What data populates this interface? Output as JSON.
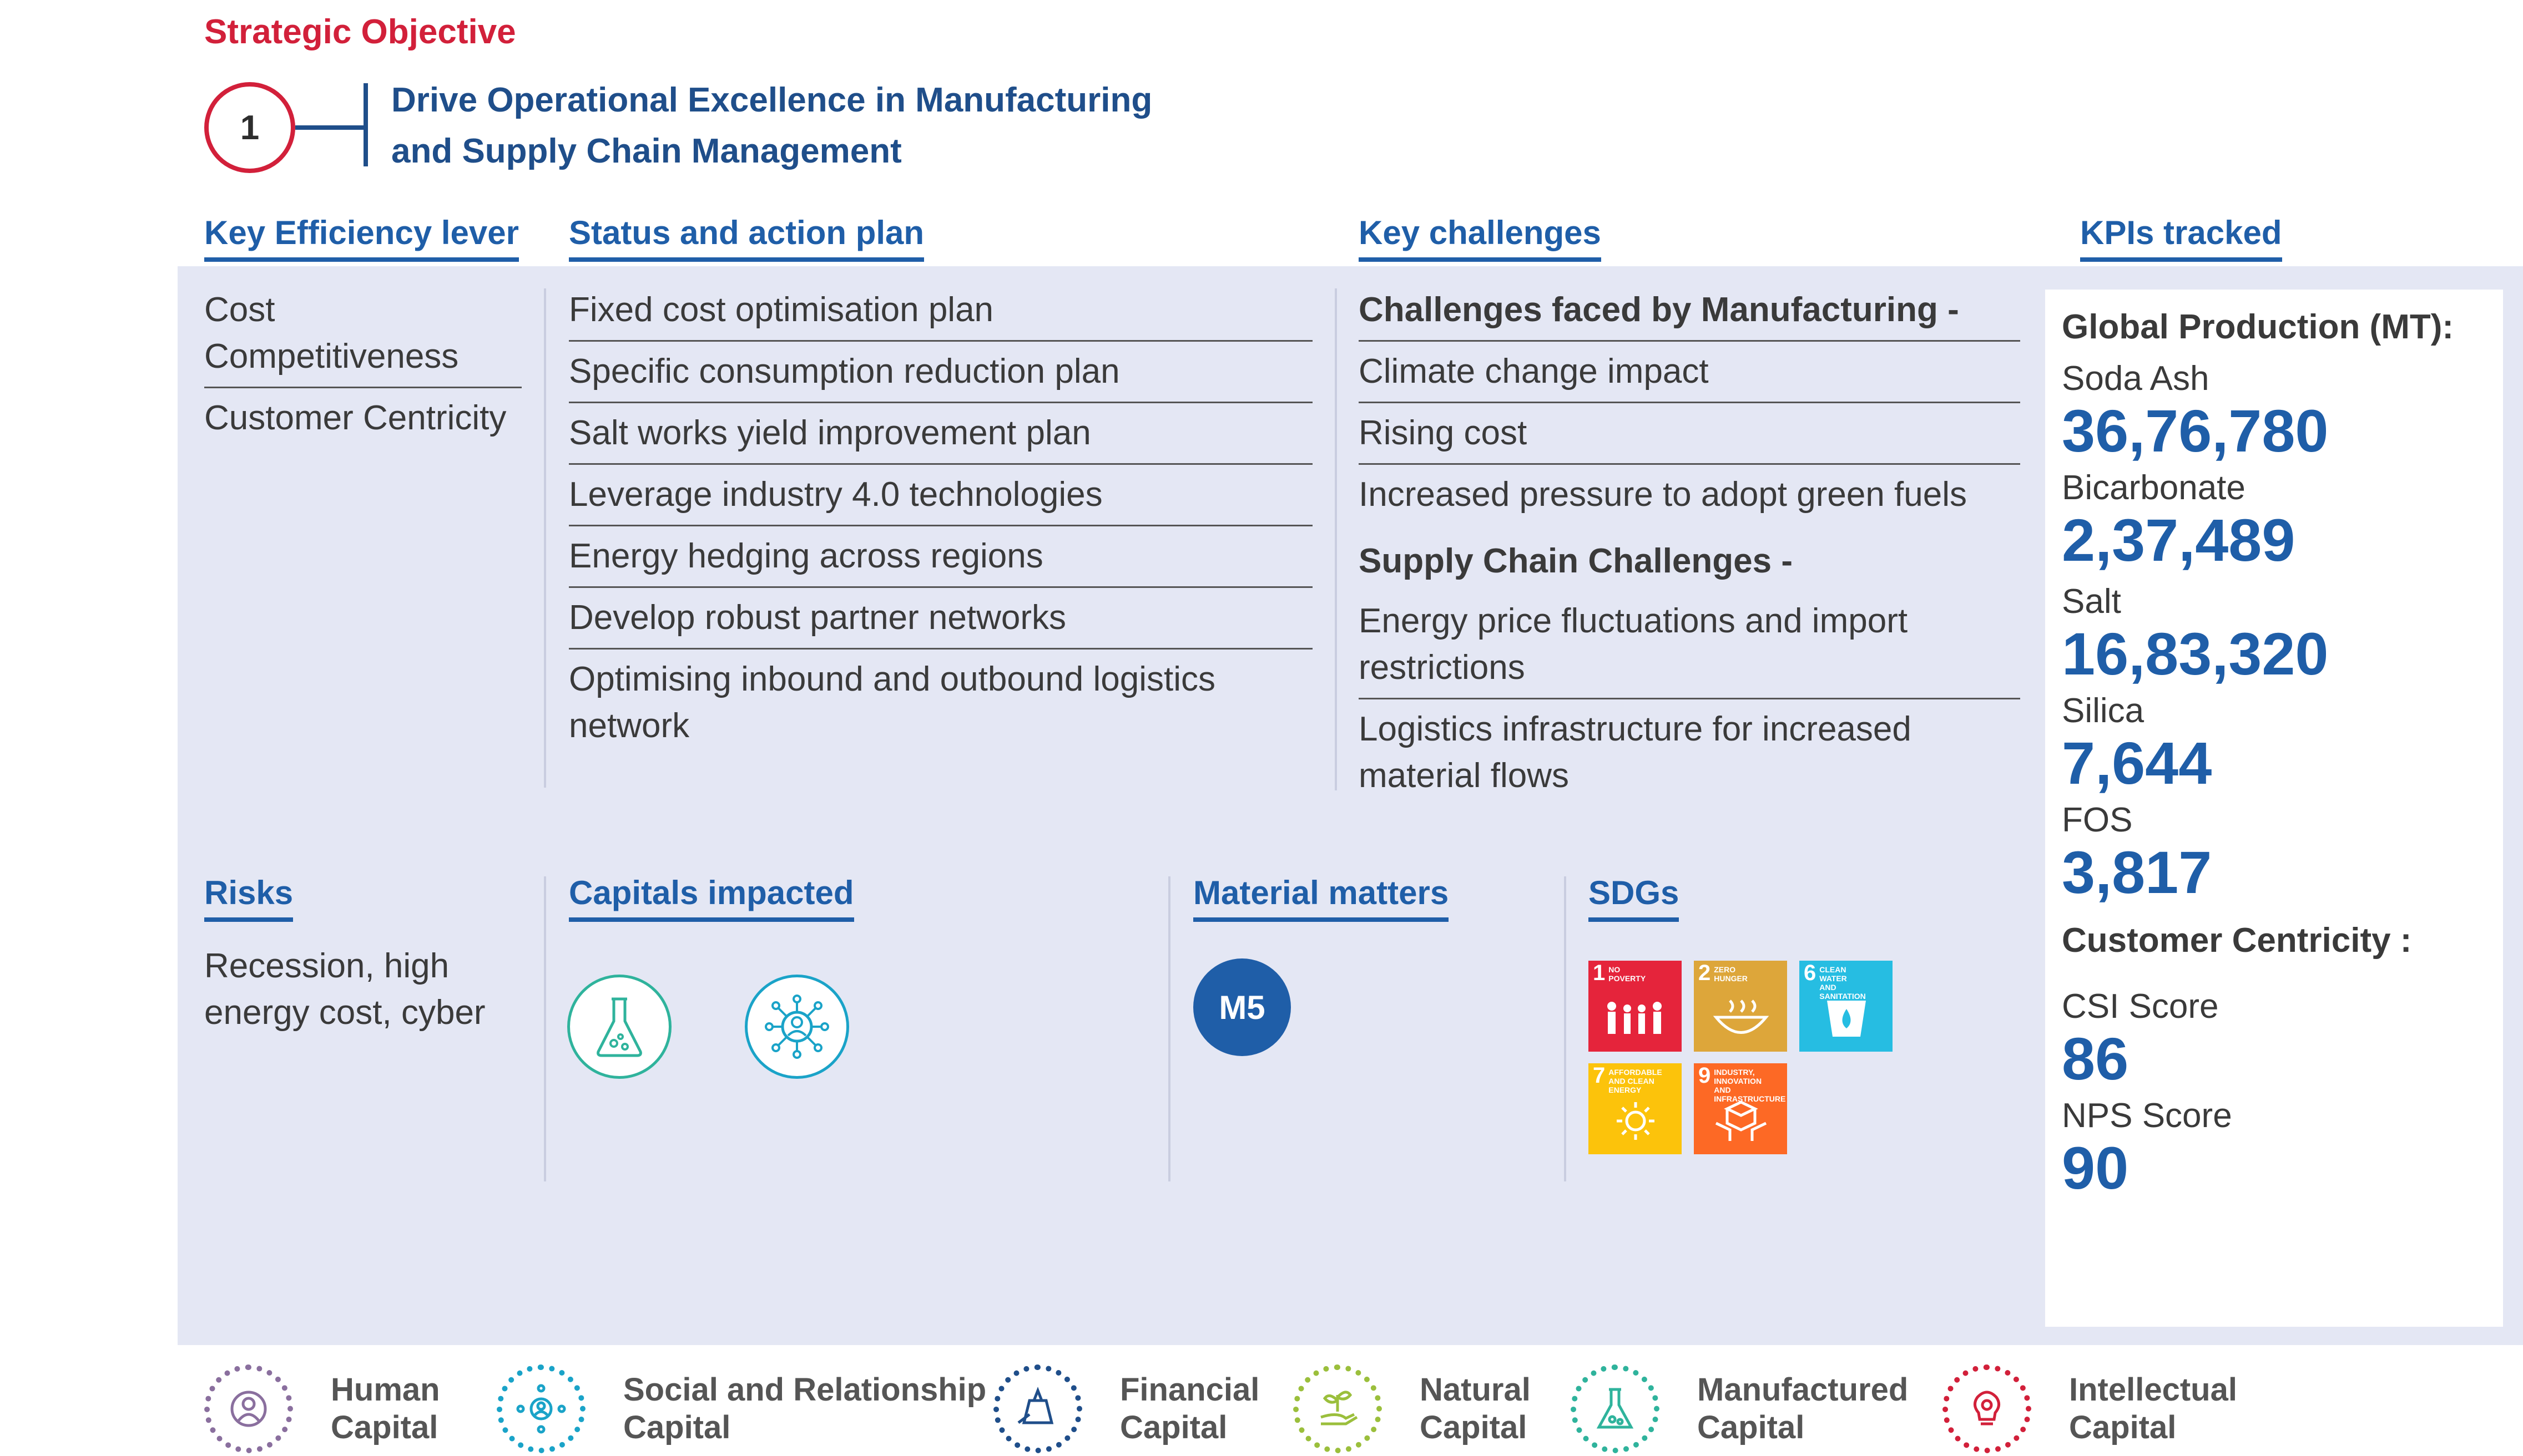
{
  "header": {
    "strategic_label": "Strategic Objective",
    "objective_number": "1",
    "objective_title_line1": "Drive Operational Excellence in Manufacturing",
    "objective_title_line2": "and Supply Chain Management"
  },
  "sections": {
    "key_efficiency_lever": "Key Efficiency lever",
    "status_action_plan": "Status and action plan",
    "key_challenges": "Key challenges",
    "kpis_tracked": "KPIs tracked",
    "risks": "Risks",
    "capitals_impacted": "Capitals impacted",
    "material_matters": "Material matters",
    "sdgs": "SDGs"
  },
  "levers": [
    "Cost Competitiveness",
    "Customer Centricity"
  ],
  "action_plan": [
    "Fixed cost optimisation plan",
    "Specific consumption reduction plan",
    "Salt works yield improvement plan",
    "Leverage industry 4.0 technologies",
    "Energy hedging across regions",
    "Develop robust partner networks",
    "Optimising inbound and outbound logistics network"
  ],
  "challenges": {
    "manufacturing_heading": "Challenges faced by Manufacturing -",
    "manufacturing": [
      "Climate change impact",
      "Rising cost",
      "Increased pressure to adopt green fuels"
    ],
    "supply_heading": "Supply Chain Challenges -",
    "supply": [
      "Energy price fluctuations and import restrictions",
      "Logistics infrastructure for increased material flows"
    ]
  },
  "kpis": {
    "production_title": "Global Production (MT):",
    "production": [
      {
        "label": "Soda Ash",
        "value": "36,76,780"
      },
      {
        "label": "Bicarbonate",
        "value": "2,37,489"
      },
      {
        "label": "Salt",
        "value": "16,83,320"
      },
      {
        "label": "Silica",
        "value": "7,644"
      },
      {
        "label": "FOS",
        "value": "3,817"
      }
    ],
    "customer_title": "Customer Centricity :",
    "customer": [
      {
        "label": "CSI Score",
        "value": "86"
      },
      {
        "label": "NPS Score",
        "value": "90"
      }
    ]
  },
  "risks_text": "Recession, high energy cost, cyber",
  "material_matter": "M5",
  "sdg_tiles": [
    {
      "num": "1",
      "label": "NO POVERTY",
      "color": "#e5243b"
    },
    {
      "num": "2",
      "label": "ZERO HUNGER",
      "color": "#dda63a"
    },
    {
      "num": "6",
      "label": "CLEAN WATER AND SANITATION",
      "color": "#26bde2"
    },
    {
      "num": "7",
      "label": "AFFORDABLE AND CLEAN ENERGY",
      "color": "#fcc30b"
    },
    {
      "num": "9",
      "label": "INDUSTRY, INNOVATION AND INFRASTRUCTURE",
      "color": "#fd6925"
    }
  ],
  "legend": [
    {
      "line1": "Human",
      "line2": "Capital",
      "color": "#8a6f9e",
      "icon": "human-capital-icon"
    },
    {
      "line1": "Social and Relationship",
      "line2": "Capital",
      "color": "#1aa3c8",
      "icon": "social-capital-icon"
    },
    {
      "line1": "Financial",
      "line2": "Capital",
      "color": "#1f4e8a",
      "icon": "financial-capital-icon"
    },
    {
      "line1": "Natural",
      "line2": "Capital",
      "color": "#9bbf3c",
      "icon": "natural-capital-icon"
    },
    {
      "line1": "Manufactured",
      "line2": "Capital",
      "color": "#2fb39c",
      "icon": "manufactured-capital-icon"
    },
    {
      "line1": "Intellectual",
      "line2": "Capital",
      "color": "#d2203a",
      "icon": "intellectual-capital-icon"
    }
  ]
}
